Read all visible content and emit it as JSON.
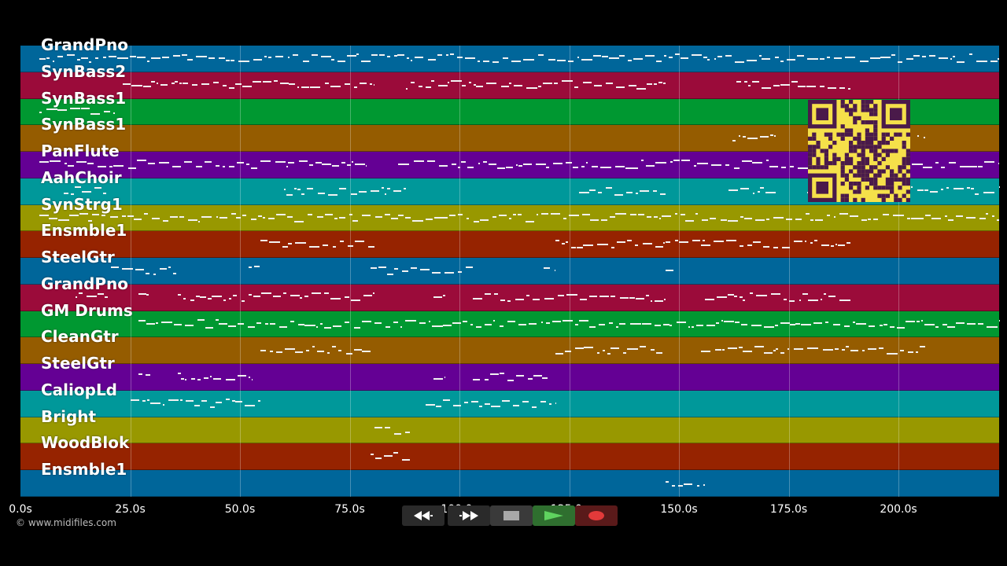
{
  "tracks": [
    {
      "name": "GrandPno",
      "color": "#00669a"
    },
    {
      "name": "SynBass2",
      "color": "#9b0b3a"
    },
    {
      "name": "SynBass1",
      "color": "#009831"
    },
    {
      "name": "SynBass1",
      "color": "#955c00"
    },
    {
      "name": "PanFlute",
      "color": "#640094"
    },
    {
      "name": "AahChoir",
      "color": "#00989a"
    },
    {
      "name": "SynStrg1",
      "color": "#989800"
    },
    {
      "name": "Ensmble1",
      "color": "#962300"
    },
    {
      "name": "SteelGtr",
      "color": "#00669a"
    },
    {
      "name": "GrandPno",
      "color": "#9b0b3a"
    },
    {
      "name": "GM Drums",
      "color": "#009831"
    },
    {
      "name": "CleanGtr",
      "color": "#955c00"
    },
    {
      "name": "SteelGtr",
      "color": "#640094"
    },
    {
      "name": "CaliopLd",
      "color": "#00989a"
    },
    {
      "name": "Bright",
      "color": "#989800"
    },
    {
      "name": "WoodBlok",
      "color": "#962300"
    },
    {
      "name": "Ensmble1",
      "color": "#00669a"
    }
  ],
  "timeline": {
    "ticks": [
      "0.0s",
      "25.0s",
      "50.0s",
      "75.0s",
      "100.0s",
      "125.0s",
      "150.0s",
      "175.0s",
      "200.0s"
    ],
    "seconds_max": 222.5
  },
  "copyright": "© www.midifiles.com",
  "transport": {
    "rewind_icon": "rewind-icon",
    "fastforward_icon": "fast-forward-icon",
    "stop_icon": "stop-icon",
    "play_icon": "play-icon",
    "record_icon": "record-icon",
    "play_color": "#3a9a3a",
    "record_color": "#e23a3a"
  },
  "qr_icon": "qr-code-icon"
}
